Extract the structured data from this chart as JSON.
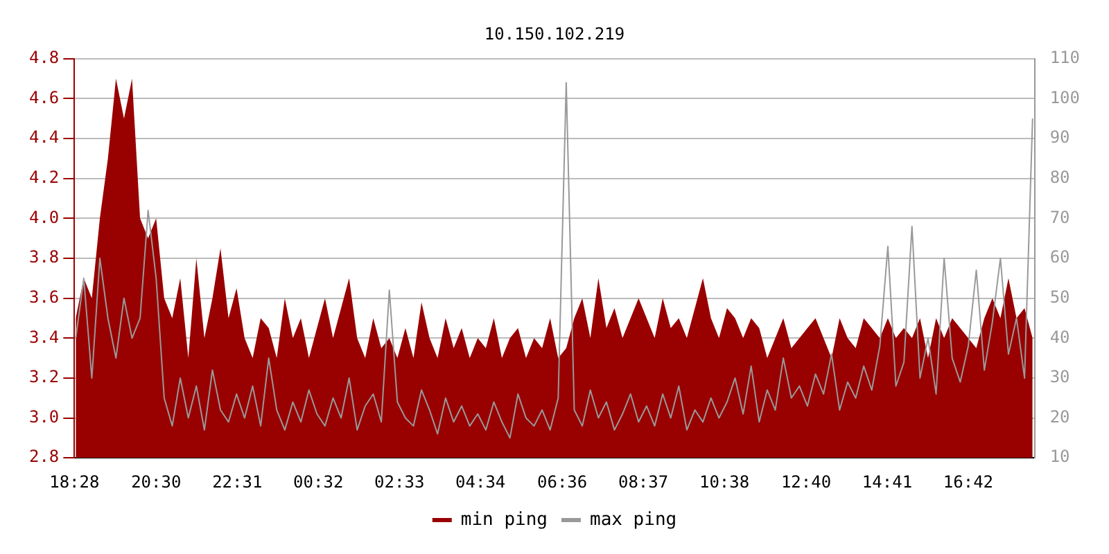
{
  "chart_data": {
    "type": "area",
    "title": "10.150.102.219",
    "x": [
      "--01-01T18:30",
      "--01-01T18:42",
      "--01-01T18:54",
      "--01-01T19:06",
      "--01-01T19:18",
      "--01-01T19:30",
      "--01-01T19:42",
      "--01-01T19:54",
      "--01-01T20:06",
      "--01-01T20:18",
      "--01-01T20:30",
      "--01-01T20:42",
      "--01-01T20:54",
      "--01-01T21:06",
      "--01-01T21:18",
      "--01-01T21:30",
      "--01-01T21:42",
      "--01-01T21:54",
      "--01-01T22:06",
      "--01-01T22:18",
      "--01-01T22:30",
      "--01-01T22:42",
      "--01-01T22:54",
      "--01-01T23:06",
      "--01-01T23:18",
      "--01-01T23:30",
      "--01-01T23:42",
      "--01-01T23:54",
      "--01-02T00:06",
      "--01-02T00:18",
      "--01-02T00:30",
      "--01-02T00:42",
      "--01-02T00:54",
      "--01-02T01:06",
      "--01-02T01:18",
      "--01-02T01:30",
      "--01-02T01:42",
      "--01-02T01:54",
      "--01-02T02:06",
      "--01-02T02:18",
      "--01-02T02:30",
      "--01-02T02:42",
      "--01-02T02:54",
      "--01-02T03:06",
      "--01-02T03:18",
      "--01-02T03:30",
      "--01-02T03:42",
      "--01-02T03:54",
      "--01-02T04:06",
      "--01-02T04:18",
      "--01-02T04:30",
      "--01-02T04:42",
      "--01-02T04:54",
      "--01-02T05:06",
      "--01-02T05:18",
      "--01-02T05:30",
      "--01-02T05:42",
      "--01-02T05:54",
      "--01-02T06:06",
      "--01-02T06:18",
      "--01-02T06:30",
      "--01-02T06:42",
      "--01-02T06:54",
      "--01-02T07:06",
      "--01-02T07:18",
      "--01-02T07:30",
      "--01-02T07:42",
      "--01-02T07:54",
      "--01-02T08:06",
      "--01-02T08:18",
      "--01-02T08:30",
      "--01-02T08:42",
      "--01-02T08:54",
      "--01-02T09:06",
      "--01-02T09:18",
      "--01-02T09:30",
      "--01-02T09:42",
      "--01-02T09:54",
      "--01-02T10:06",
      "--01-02T10:18",
      "--01-02T10:30",
      "--01-02T10:42",
      "--01-02T10:54",
      "--01-02T11:06",
      "--01-02T11:18",
      "--01-02T11:30",
      "--01-02T11:42",
      "--01-02T11:54",
      "--01-02T12:06",
      "--01-02T12:18",
      "--01-02T12:30",
      "--01-02T12:42",
      "--01-02T12:54",
      "--01-02T13:06",
      "--01-02T13:18",
      "--01-02T13:30",
      "--01-02T13:42",
      "--01-02T13:54",
      "--01-02T14:06",
      "--01-02T14:18",
      "--01-02T14:30",
      "--01-02T14:42",
      "--01-02T14:54",
      "--01-02T15:06",
      "--01-02T15:18",
      "--01-02T15:30",
      "--01-02T15:42",
      "--01-02T15:54",
      "--01-02T16:06",
      "--01-02T16:18",
      "--01-02T16:30",
      "--01-02T16:42",
      "--01-02T16:54",
      "--01-02T17:06",
      "--01-02T17:18",
      "--01-02T17:30",
      "--01-02T17:42",
      "--01-02T17:54",
      "--01-02T18:06",
      "--01-02T18:18"
    ],
    "series": [
      {
        "name": "min ping",
        "color": "#990000",
        "values": [
          3.5,
          3.7,
          3.6,
          4.0,
          4.3,
          4.7,
          4.5,
          4.7,
          4.0,
          3.9,
          4.0,
          3.6,
          3.5,
          3.7,
          3.3,
          3.8,
          3.4,
          3.6,
          3.85,
          3.5,
          3.65,
          3.4,
          3.3,
          3.5,
          3.45,
          3.3,
          3.6,
          3.4,
          3.5,
          3.3,
          3.45,
          3.6,
          3.4,
          3.55,
          3.7,
          3.4,
          3.3,
          3.5,
          3.35,
          3.4,
          3.3,
          3.45,
          3.3,
          3.58,
          3.4,
          3.3,
          3.5,
          3.35,
          3.45,
          3.3,
          3.4,
          3.35,
          3.5,
          3.3,
          3.4,
          3.45,
          3.3,
          3.4,
          3.35,
          3.5,
          3.3,
          3.35,
          3.5,
          3.6,
          3.4,
          3.7,
          3.45,
          3.55,
          3.4,
          3.5,
          3.6,
          3.5,
          3.4,
          3.6,
          3.45,
          3.5,
          3.4,
          3.55,
          3.7,
          3.5,
          3.4,
          3.55,
          3.5,
          3.4,
          3.5,
          3.45,
          3.3,
          3.4,
          3.5,
          3.35,
          3.4,
          3.45,
          3.5,
          3.4,
          3.3,
          3.5,
          3.4,
          3.35,
          3.5,
          3.45,
          3.4,
          3.5,
          3.4,
          3.45,
          3.4,
          3.5,
          3.3,
          3.5,
          3.4,
          3.5,
          3.45,
          3.4,
          3.35,
          3.5,
          3.6,
          3.5,
          3.7,
          3.5,
          3.55,
          3.4
        ]
      },
      {
        "name": "max ping",
        "type": "line",
        "axis": "y2",
        "color": "#999999",
        "values": [
          40,
          55,
          30,
          60,
          45,
          35,
          50,
          40,
          45,
          72,
          55,
          25,
          18,
          30,
          20,
          28,
          17,
          32,
          22,
          19,
          26,
          20,
          28,
          18,
          35,
          22,
          17,
          24,
          19,
          27,
          21,
          18,
          25,
          20,
          30,
          17,
          23,
          26,
          19,
          52,
          24,
          20,
          18,
          27,
          22,
          16,
          25,
          19,
          23,
          18,
          21,
          17,
          24,
          19,
          15,
          26,
          20,
          18,
          22,
          17,
          25,
          104,
          22,
          18,
          27,
          20,
          24,
          17,
          21,
          26,
          19,
          23,
          18,
          26,
          20,
          28,
          17,
          22,
          19,
          25,
          20,
          24,
          30,
          21,
          33,
          19,
          27,
          22,
          35,
          25,
          28,
          23,
          31,
          26,
          36,
          22,
          29,
          25,
          33,
          27,
          38,
          63,
          28,
          34,
          68,
          30,
          40,
          26,
          60,
          35,
          29,
          38,
          57,
          32,
          44,
          60,
          36,
          45,
          30,
          95
        ]
      }
    ],
    "xlim": [
      "--01-01T18:28",
      "--01-02T18:21"
    ],
    "xticks": [
      {
        "value": "--01-01T18:28",
        "label": "18:28"
      },
      {
        "value": "--01-01T20:30",
        "label": "20:30"
      },
      {
        "value": "--01-01T22:31",
        "label": "22:31"
      },
      {
        "value": "--01-02T00:32",
        "label": "00:32"
      },
      {
        "value": "--01-02T02:33",
        "label": "02:33"
      },
      {
        "value": "--01-02T04:34",
        "label": "04:34"
      },
      {
        "value": "--01-02T06:36",
        "label": "06:36"
      },
      {
        "value": "--01-02T08:37",
        "label": "08:37"
      },
      {
        "value": "--01-02T10:38",
        "label": "10:38"
      },
      {
        "value": "--01-02T12:40",
        "label": "12:40"
      },
      {
        "value": "--01-02T14:41",
        "label": "14:41"
      },
      {
        "value": "--01-02T16:42",
        "label": "16:42"
      }
    ],
    "ylim": [
      2.8,
      4.8
    ],
    "yticks": [
      {
        "value": 2.8,
        "label": "2.8"
      },
      {
        "value": 3.0,
        "label": "3.0"
      },
      {
        "value": 3.2,
        "label": "3.2"
      },
      {
        "value": 3.4,
        "label": "3.4"
      },
      {
        "value": 3.6,
        "label": "3.6"
      },
      {
        "value": 3.8,
        "label": "3.8"
      },
      {
        "value": 4.0,
        "label": "4.0"
      },
      {
        "value": 4.2,
        "label": "4.2"
      },
      {
        "value": 4.4,
        "label": "4.4"
      },
      {
        "value": 4.6,
        "label": "4.6"
      },
      {
        "value": 4.8,
        "label": "4.8"
      }
    ],
    "y2lim": [
      10,
      110
    ],
    "y2ticks": [
      10,
      20,
      30,
      40,
      50,
      60,
      70,
      80,
      90,
      100,
      110
    ],
    "grid": "y",
    "legend": "bottom"
  }
}
